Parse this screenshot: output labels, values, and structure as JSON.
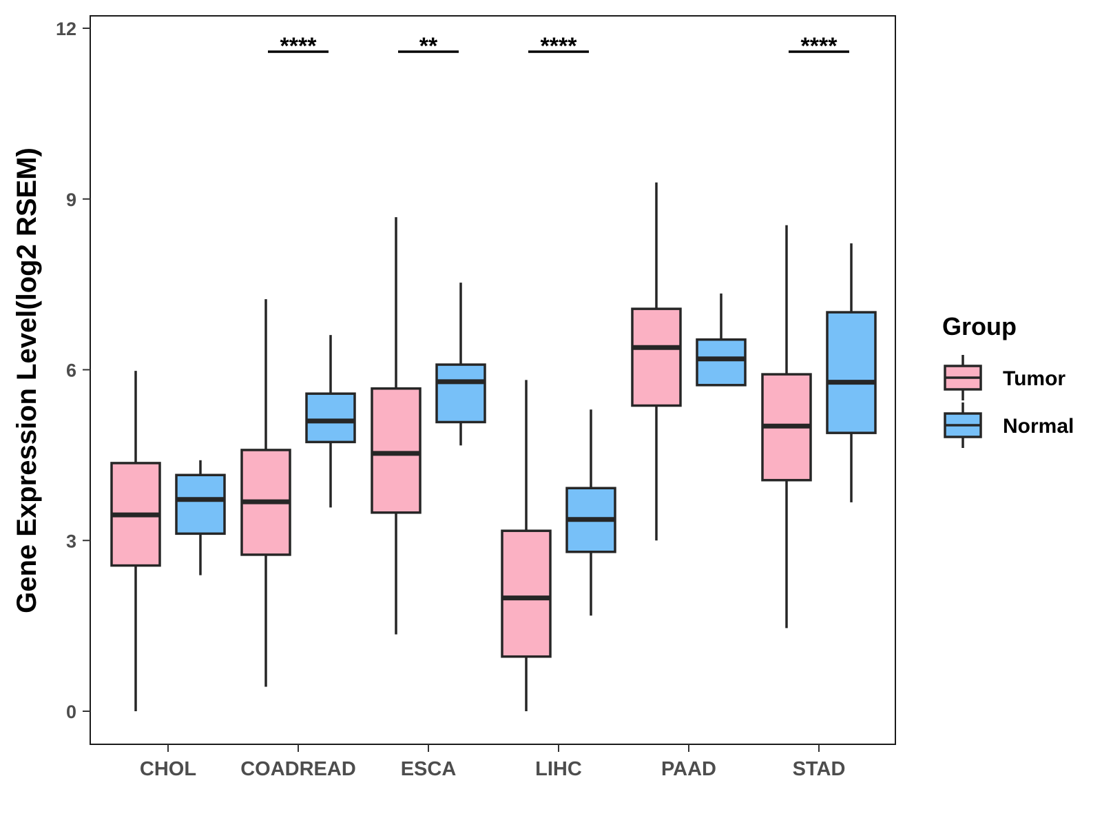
{
  "chart_data": {
    "type": "boxplot",
    "title": "",
    "xlabel": "",
    "ylabel": "Gene Expression Level(log2 RSEM)",
    "ylim": [
      -0.55,
      12.35
    ],
    "yticks": [
      0,
      3,
      6,
      9,
      12
    ],
    "grid": false,
    "legend": {
      "title": "Group",
      "position": "right"
    },
    "categories": [
      "CHOL",
      "COADREAD",
      "ESCA",
      "LIHC",
      "PAAD",
      "STAD"
    ],
    "series": [
      {
        "name": "Tumor",
        "color": "#FBB1C3",
        "boxes": [
          {
            "min": 0.0,
            "q1": 2.56,
            "median": 3.45,
            "q3": 4.36,
            "max": 5.98
          },
          {
            "min": 0.43,
            "q1": 2.75,
            "median": 3.68,
            "q3": 4.59,
            "max": 7.24
          },
          {
            "min": 1.35,
            "q1": 3.49,
            "median": 4.53,
            "q3": 5.67,
            "max": 8.68
          },
          {
            "min": 0.0,
            "q1": 0.96,
            "median": 1.99,
            "q3": 3.17,
            "max": 5.82
          },
          {
            "min": 3.0,
            "q1": 5.37,
            "median": 6.39,
            "q3": 7.07,
            "max": 9.29
          },
          {
            "min": 1.46,
            "q1": 4.06,
            "median": 5.01,
            "q3": 5.92,
            "max": 8.54
          }
        ]
      },
      {
        "name": "Normal",
        "color": "#77C0F8",
        "boxes": [
          {
            "min": 2.39,
            "q1": 3.12,
            "median": 3.72,
            "q3": 4.15,
            "max": 4.41
          },
          {
            "min": 3.58,
            "q1": 4.73,
            "median": 5.1,
            "q3": 5.58,
            "max": 6.61
          },
          {
            "min": 4.67,
            "q1": 5.08,
            "median": 5.79,
            "q3": 6.09,
            "max": 7.53
          },
          {
            "min": 1.68,
            "q1": 2.8,
            "median": 3.37,
            "q3": 3.92,
            "max": 5.3
          },
          {
            "min": 5.73,
            "q1": 5.73,
            "median": 6.19,
            "q3": 6.53,
            "max": 7.34
          },
          {
            "min": 3.67,
            "q1": 4.89,
            "median": 5.78,
            "q3": 7.01,
            "max": 8.22
          }
        ]
      }
    ],
    "annotations": [
      {
        "category": "COADREAD",
        "label": "****"
      },
      {
        "category": "ESCA",
        "label": "**"
      },
      {
        "category": "LIHC",
        "label": "****"
      },
      {
        "category": "STAD",
        "label": "****"
      }
    ]
  }
}
